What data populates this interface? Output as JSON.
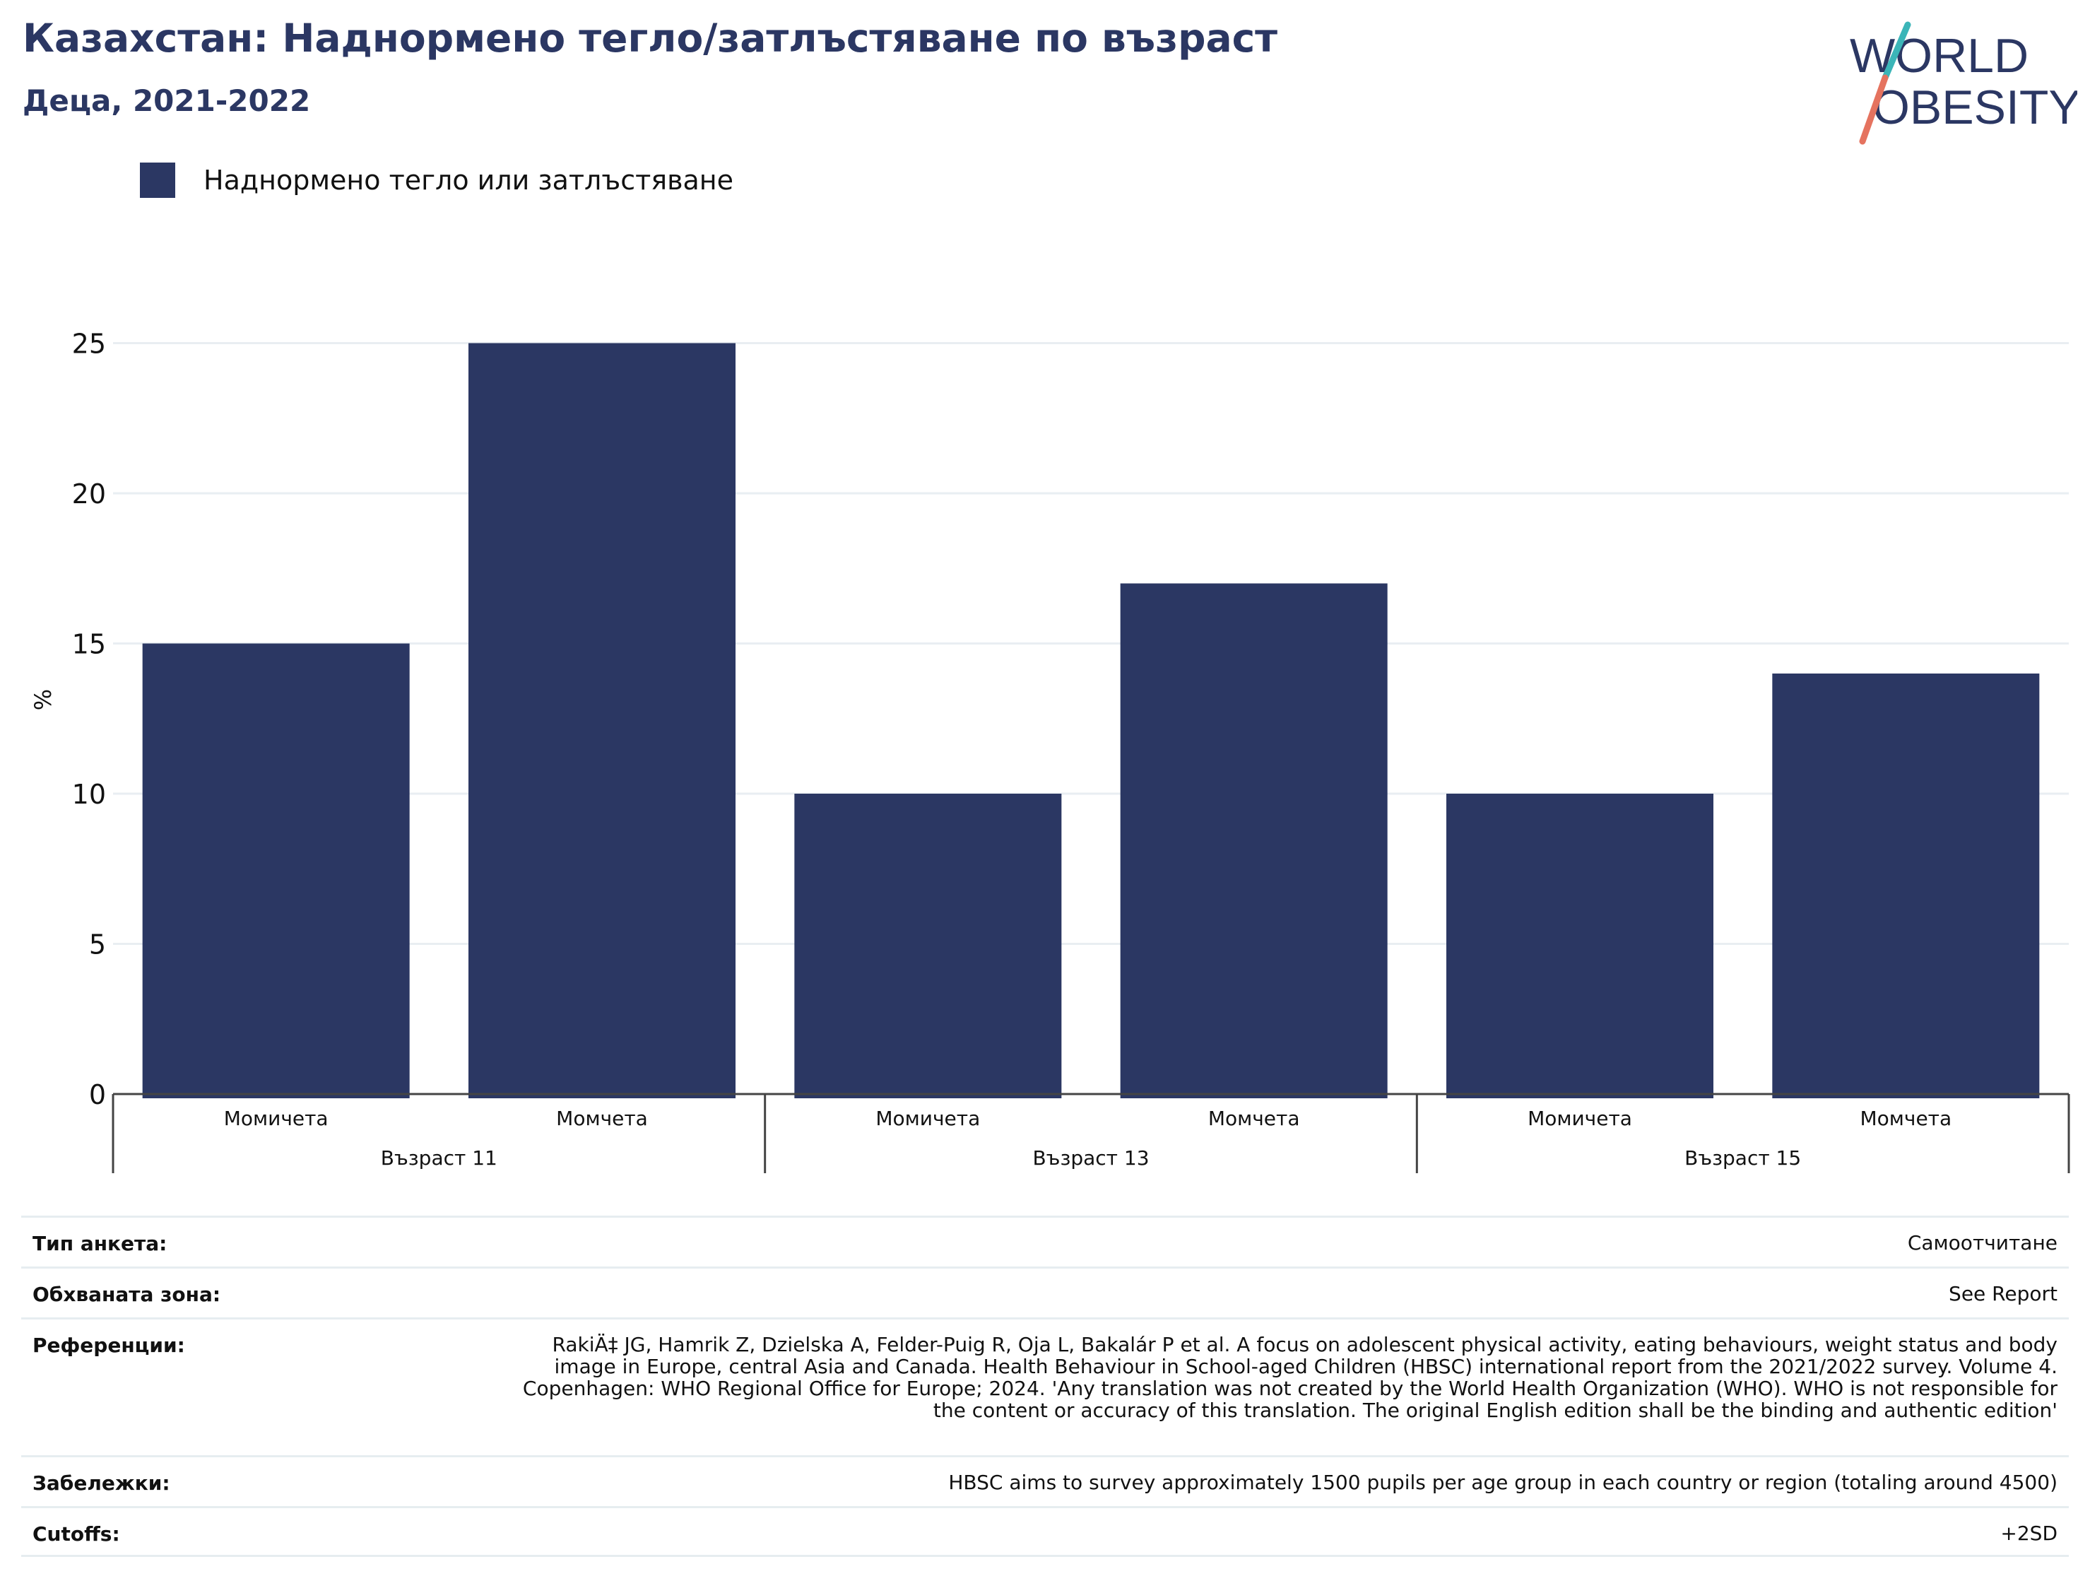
{
  "header": {
    "title": "Казахстан: Наднормено тегло/затлъстяване по възраст",
    "subtitle": "Деца, 2021-2022",
    "logo_text_line1": "WORLD",
    "logo_text_line2": "OBESITY"
  },
  "legend": {
    "label": "Наднормено тегло или затлъстяване",
    "color": "#2b3763"
  },
  "chart_data": {
    "type": "bar",
    "ylabel": "%",
    "xlabel": "",
    "ylim": [
      0,
      27
    ],
    "yticks": [
      0,
      5,
      10,
      15,
      20,
      25
    ],
    "grid": true,
    "bar_color": "#2b3763",
    "groups": [
      {
        "label": "Възраст 11",
        "categories": [
          "Момичета",
          "Момчета"
        ],
        "values": [
          15,
          25
        ]
      },
      {
        "label": "Възраст 13",
        "categories": [
          "Момичета",
          "Момчета"
        ],
        "values": [
          10,
          17
        ]
      },
      {
        "label": "Възраст 15",
        "categories": [
          "Момичета",
          "Момчета"
        ],
        "values": [
          10,
          14
        ]
      }
    ],
    "series": [
      {
        "name": "Наднормено тегло или затлъстяване",
        "values": [
          15,
          25,
          10,
          17,
          10,
          14
        ]
      }
    ]
  },
  "info": {
    "survey_type_label": "Тип анкета:",
    "survey_type_value": "Самоотчитане",
    "coverage_label": "Обхваната зона:",
    "coverage_value": "See Report",
    "references_label": "Референции:",
    "references_value": "RakiÄ‡ JG, Hamrik Z, Dzielska A, Felder-Puig R, Oja L, Bakalár P et al. A focus on adolescent physical activity, eating behaviours, weight status and body image in Europe, central Asia and Canada. Health Behaviour in School-aged Children (HBSC) international report from the 2021/2022 survey. Volume 4. Copenhagen: WHO Regional Office for Europe; 2024. 'Any translation was not created by the World Health Organization (WHO). WHO is not responsible for the content or accuracy of this translation. The original English edition shall be the binding and authentic edition'",
    "notes_label": "Забележки:",
    "notes_value": "HBSC aims to survey approximately 1500 pupils per age group in each country or region (totaling around 4500)",
    "cutoffs_label": "Cutoffs:",
    "cutoffs_value": "+2SD"
  }
}
